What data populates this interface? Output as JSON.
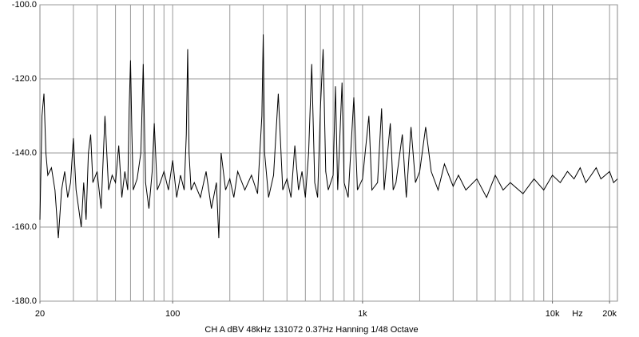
{
  "chart_data": {
    "type": "line",
    "subtitle": "CH A   dBV   48kHz   131072   0.37Hz   Hanning   1/48 Octave",
    "x_label": "Hz",
    "log_x": true,
    "grid": true,
    "color": "#000000",
    "xlim": [
      20,
      22000
    ],
    "ylim": [
      -180,
      -100
    ],
    "xticks": [
      20,
      100,
      {
        "value": 1000,
        "label": "1k"
      },
      {
        "value": 10000,
        "label": "10k"
      },
      {
        "value": 20000,
        "label": "20k"
      }
    ],
    "xgrid": [
      30,
      40,
      50,
      60,
      70,
      80,
      90,
      100,
      200,
      300,
      400,
      500,
      600,
      700,
      800,
      900,
      1000,
      2000,
      3000,
      4000,
      5000,
      6000,
      7000,
      8000,
      9000,
      10000,
      20000
    ],
    "yticks": [
      {
        "value": -100,
        "label": "-100.0"
      },
      {
        "value": -120,
        "label": "-120.0"
      },
      {
        "value": -140,
        "label": "-140.0"
      },
      {
        "value": -160,
        "label": "-160.0"
      },
      {
        "value": -180,
        "label": "-180.0"
      }
    ],
    "x": [
      20,
      20.5,
      21,
      21.5,
      22,
      23,
      24,
      25,
      26,
      27,
      28,
      29,
      30,
      31,
      32,
      33,
      34,
      35,
      36,
      37,
      38,
      40,
      42,
      44,
      46,
      48,
      50,
      52,
      54,
      56,
      58,
      59,
      60,
      61,
      62,
      65,
      68,
      70,
      72,
      75,
      78,
      80,
      83,
      86,
      90,
      95,
      100,
      105,
      110,
      115,
      118,
      120,
      122,
      125,
      130,
      140,
      150,
      160,
      170,
      175,
      180,
      190,
      200,
      210,
      220,
      240,
      260,
      280,
      295,
      300,
      305,
      320,
      340,
      360,
      380,
      400,
      420,
      440,
      460,
      480,
      500,
      520,
      540,
      560,
      580,
      600,
      620,
      640,
      660,
      700,
      720,
      740,
      780,
      800,
      840,
      900,
      940,
      1000,
      1080,
      1120,
      1200,
      1260,
      1300,
      1400,
      1450,
      1500,
      1620,
      1700,
      1800,
      1900,
      2000,
      2150,
      2300,
      2500,
      2700,
      3000,
      3200,
      3500,
      4000,
      4500,
      5000,
      5500,
      6000,
      7000,
      8000,
      9000,
      10000,
      11000,
      12000,
      13000,
      14000,
      15000,
      16000,
      17000,
      18000,
      19000,
      20000,
      21000,
      22000
    ],
    "values": [
      -158,
      -130,
      -124,
      -140,
      -146,
      -144,
      -150,
      -163,
      -150,
      -145,
      -152,
      -148,
      -136,
      -150,
      -155,
      -160,
      -148,
      -158,
      -140,
      -135,
      -148,
      -145,
      -155,
      -130,
      -150,
      -146,
      -148,
      -138,
      -152,
      -145,
      -150,
      -128,
      -115,
      -135,
      -150,
      -147,
      -140,
      -116,
      -148,
      -155,
      -145,
      -132,
      -150,
      -148,
      -145,
      -150,
      -142,
      -152,
      -146,
      -150,
      -135,
      -112,
      -140,
      -150,
      -148,
      -152,
      -145,
      -155,
      -148,
      -163,
      -140,
      -150,
      -147,
      -152,
      -145,
      -150,
      -146,
      -151,
      -130,
      -108,
      -140,
      -152,
      -146,
      -124,
      -150,
      -147,
      -152,
      -138,
      -150,
      -145,
      -152,
      -140,
      -116,
      -148,
      -152,
      -128,
      -112,
      -145,
      -150,
      -146,
      -122,
      -150,
      -121,
      -148,
      -152,
      -125,
      -150,
      -147,
      -130,
      -150,
      -148,
      -128,
      -150,
      -132,
      -150,
      -148,
      -135,
      -152,
      -133,
      -148,
      -145,
      -133,
      -145,
      -150,
      -143,
      -149,
      -146,
      -150,
      -147,
      -152,
      -146,
      -150,
      -148,
      -151,
      -147,
      -150,
      -146,
      -148,
      -145,
      -147,
      -144,
      -148,
      -146,
      -144,
      -147,
      -146,
      -145,
      -148,
      -147
    ]
  }
}
